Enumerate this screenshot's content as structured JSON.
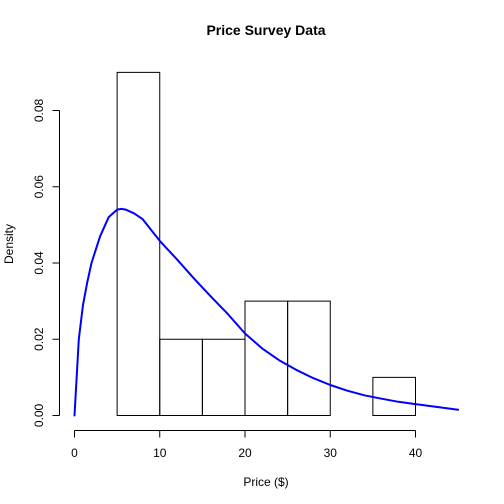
{
  "chart_data": {
    "type": "histogram",
    "title": "Price Survey Data",
    "xlabel": "Price ($)",
    "ylabel": "Density",
    "xlim": [
      0,
      45
    ],
    "ylim": [
      0,
      0.09
    ],
    "x_ticks": [
      "0",
      "10",
      "20",
      "30",
      "40"
    ],
    "y_ticks": [
      "0.00",
      "0.02",
      "0.04",
      "0.06",
      "0.08"
    ],
    "grid": false,
    "legend": "none",
    "bins": [
      {
        "from": 5,
        "to": 10,
        "density": 0.09
      },
      {
        "from": 10,
        "to": 15,
        "density": 0.02
      },
      {
        "from": 15,
        "to": 20,
        "density": 0.02
      },
      {
        "from": 20,
        "to": 25,
        "density": 0.03
      },
      {
        "from": 25,
        "to": 30,
        "density": 0.03
      },
      {
        "from": 30,
        "to": 35,
        "density": 0.0
      },
      {
        "from": 35,
        "to": 40,
        "density": 0.01
      }
    ],
    "curve": {
      "color": "#0000ff",
      "x": [
        0,
        0.5,
        1,
        1.5,
        2,
        3,
        4,
        5,
        5.5,
        6,
        7,
        8,
        10,
        12,
        14,
        16,
        18,
        20,
        22,
        24,
        26,
        28,
        30,
        32,
        34,
        36,
        38,
        40,
        42,
        45
      ],
      "y": [
        0,
        0.02,
        0.029,
        0.035,
        0.04,
        0.047,
        0.052,
        0.054,
        0.0542,
        0.054,
        0.053,
        0.0515,
        0.0458,
        0.041,
        0.036,
        0.0312,
        0.0266,
        0.0215,
        0.0176,
        0.0145,
        0.012,
        0.0098,
        0.008,
        0.0065,
        0.0053,
        0.0044,
        0.0036,
        0.003,
        0.0024,
        0.0015
      ]
    }
  }
}
